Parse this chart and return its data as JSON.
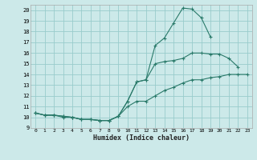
{
  "title": "",
  "xlabel": "Humidex (Indice chaleur)",
  "bg_color": "#cce9e9",
  "line_color": "#2a7a6a",
  "grid_color": "#99cccc",
  "xlim": [
    -0.5,
    23.5
  ],
  "ylim": [
    9,
    20.5
  ],
  "xticks": [
    0,
    1,
    2,
    3,
    4,
    5,
    6,
    7,
    8,
    9,
    10,
    11,
    12,
    13,
    14,
    15,
    16,
    17,
    18,
    19,
    20,
    21,
    22,
    23
  ],
  "yticks": [
    9,
    10,
    11,
    12,
    13,
    14,
    15,
    16,
    17,
    18,
    19,
    20
  ],
  "line1_x": [
    0,
    1,
    2,
    3,
    4,
    5,
    6,
    7,
    8,
    9,
    10,
    11,
    12,
    13,
    14,
    15,
    16,
    17,
    18,
    19
  ],
  "line1_y": [
    10.4,
    10.2,
    10.2,
    10.0,
    10.0,
    9.8,
    9.8,
    9.7,
    9.7,
    10.1,
    11.5,
    13.3,
    13.5,
    16.7,
    17.4,
    18.8,
    20.2,
    20.1,
    19.3,
    17.5
  ],
  "line2_x": [
    0,
    1,
    2,
    3,
    4,
    5,
    6,
    7,
    8,
    9,
    10,
    11,
    12,
    13,
    14,
    15,
    16,
    17,
    18,
    19,
    20,
    21,
    22
  ],
  "line2_y": [
    10.4,
    10.2,
    10.2,
    10.1,
    10.0,
    9.8,
    9.8,
    9.7,
    9.7,
    10.1,
    11.5,
    13.3,
    13.5,
    15.0,
    15.2,
    15.3,
    15.5,
    16.0,
    16.0,
    15.9,
    15.9,
    15.5,
    14.7
  ],
  "line3_x": [
    0,
    1,
    2,
    3,
    4,
    5,
    6,
    7,
    8,
    9,
    10,
    11,
    12,
    13,
    14,
    15,
    16,
    17,
    18,
    19,
    20,
    21,
    22,
    23
  ],
  "line3_y": [
    10.4,
    10.2,
    10.2,
    10.1,
    10.0,
    9.8,
    9.8,
    9.7,
    9.7,
    10.1,
    11.0,
    11.5,
    11.5,
    12.0,
    12.5,
    12.8,
    13.2,
    13.5,
    13.5,
    13.7,
    13.8,
    14.0,
    14.0,
    14.0
  ]
}
